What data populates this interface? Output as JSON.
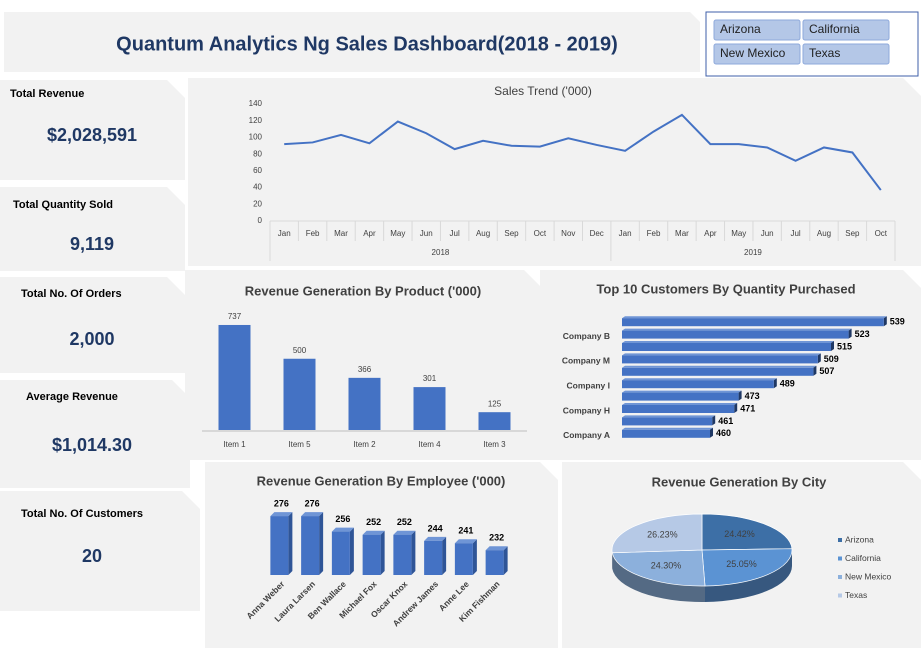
{
  "header": {
    "title": "Quantum Analytics Ng Sales Dashboard(2018 - 2019)"
  },
  "slicer": {
    "items": [
      "Arizona",
      "California",
      "New Mexico",
      "Texas"
    ]
  },
  "kpis": [
    {
      "label": "Total Revenue",
      "value": "$2,028,591"
    },
    {
      "label": "Total Quantity Sold",
      "value": "9,119"
    },
    {
      "label": "Total No. Of Orders",
      "value": "2,000"
    },
    {
      "label": "Average Revenue",
      "value": "$1,014.30"
    },
    {
      "label": "Total No. Of Customers",
      "value": "20"
    }
  ],
  "chart_data": [
    {
      "type": "line",
      "title": "Sales Trend ('000)",
      "categories": [
        "Jan",
        "Feb",
        "Mar",
        "Apr",
        "May",
        "Jun",
        "Jul",
        "Aug",
        "Sep",
        "Oct",
        "Nov",
        "Dec",
        "Jan",
        "Feb",
        "Mar",
        "Apr",
        "May",
        "Jun",
        "Jul",
        "Aug",
        "Sep",
        "Oct"
      ],
      "years": [
        "2018",
        "2018",
        "2018",
        "2018",
        "2018",
        "2018",
        "2018",
        "2018",
        "2018",
        "2018",
        "2018",
        "2018",
        "2019",
        "2019",
        "2019",
        "2019",
        "2019",
        "2019",
        "2019",
        "2019",
        "2019",
        "2019"
      ],
      "values": [
        92,
        94,
        103,
        93,
        119,
        105,
        86,
        96,
        90,
        89,
        99,
        91,
        84,
        107,
        127,
        92,
        92,
        88,
        72,
        88,
        82,
        37
      ],
      "color": "#4472c4",
      "ylim": [
        0,
        140
      ],
      "yticks": [
        0,
        20,
        40,
        60,
        80,
        100,
        120,
        140
      ],
      "grid": false
    },
    {
      "type": "bar",
      "title": "Revenue Generation By Product ('000)",
      "categories": [
        "Item 1",
        "Item 5",
        "Item 2",
        "Item 4",
        "Item 3"
      ],
      "values": [
        737,
        500,
        366,
        301,
        125
      ],
      "color": "#4472c4",
      "ylim": [
        0,
        800
      ]
    },
    {
      "type": "barh",
      "title": "Top 10 Customers By Quantity Purchased",
      "categories": [
        null,
        "Company B",
        null,
        "Company M",
        null,
        "Company I",
        null,
        "Company H",
        null,
        "Company A"
      ],
      "values": [
        539,
        523,
        515,
        509,
        507,
        489,
        473,
        471,
        461,
        460
      ],
      "color": "#4472c4",
      "xlim": [
        420,
        540
      ]
    },
    {
      "type": "bar",
      "title": "Revenue Generation By Employee ('000)",
      "categories": [
        "Anna Weber",
        "Laura Larsen",
        "Ben Wallace",
        "Michael Fox",
        "Oscar Knox",
        "Andrew James",
        "Anne Lee",
        "Kim Fishman"
      ],
      "values": [
        276,
        276,
        256,
        252,
        252,
        244,
        241,
        232
      ],
      "color": "#4472c4",
      "ylim": [
        200,
        280
      ]
    },
    {
      "type": "pie",
      "title": "Revenue Generation By City",
      "categories": [
        "Arizona",
        "California",
        "New Mexico",
        "Texas"
      ],
      "values": [
        24.42,
        25.05,
        24.3,
        26.23
      ],
      "value_labels": [
        "24.42%",
        "25.05%",
        "24.30%",
        "26.23%"
      ],
      "colors": [
        "#3d6fa6",
        "#5b93d3",
        "#8cb0dc",
        "#b6c9e6"
      ]
    }
  ]
}
